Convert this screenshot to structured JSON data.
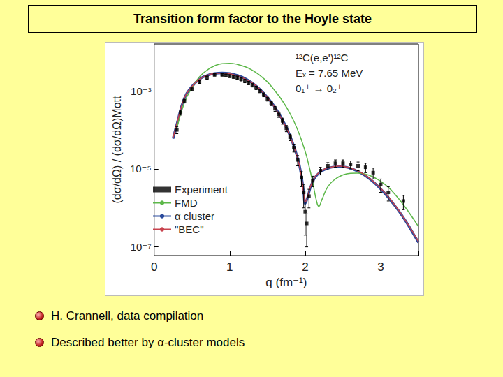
{
  "page": {
    "title": "Transition form factor to the Hoyle state",
    "bullets": [
      "H. Crannell, data compilation",
      "Described better by α-cluster models"
    ]
  },
  "chart_data": {
    "type": "line",
    "x_label": "q (fm⁻¹)",
    "y_label": "(dσ/dΩ) / (dσ/dΩ)Mott",
    "annotations": [
      "¹²C(e,e')¹²C",
      "Eₓ = 7.65 MeV",
      "0₁⁺ → 0₂⁺"
    ],
    "xlim": [
      0,
      3.5
    ],
    "xticks": [
      0,
      1,
      2,
      3
    ],
    "ylim": [
      6e-08,
      0.016
    ],
    "yticks": [
      {
        "value": 1e-07,
        "label": "10⁻⁷"
      },
      {
        "value": 1e-05,
        "label": "10⁻⁵"
      },
      {
        "value": 0.001,
        "label": "10⁻³"
      }
    ],
    "log": "y",
    "grid": false,
    "legend": "lower left",
    "series": [
      {
        "name": "Experiment",
        "type": "scatter",
        "marker": "square",
        "color": "#000000",
        "x": [
          0.3,
          0.35,
          0.4,
          0.5,
          0.6,
          0.7,
          0.8,
          0.9,
          0.95,
          1.0,
          1.05,
          1.1,
          1.15,
          1.2,
          1.25,
          1.3,
          1.35,
          1.4,
          1.45,
          1.5,
          1.55,
          1.6,
          1.65,
          1.7,
          1.75,
          1.8,
          1.85,
          1.9,
          1.95,
          1.98,
          2.0,
          2.02,
          2.05,
          2.1,
          2.2,
          2.3,
          2.4,
          2.5,
          2.6,
          2.7,
          2.8,
          2.9,
          3.0,
          3.1,
          3.3
        ],
        "values": [
          0.0001,
          0.00028,
          0.00055,
          0.0011,
          0.0017,
          0.0022,
          0.0026,
          0.0026,
          0.0025,
          0.0024,
          0.0023,
          0.0022,
          0.002,
          0.0018,
          0.0016,
          0.0014,
          0.0012,
          0.001,
          0.0008,
          0.00062,
          0.00048,
          0.00035,
          0.00025,
          0.00017,
          0.00011,
          6.5e-05,
          3.5e-05,
          1.7e-05,
          6e-06,
          2.5e-06,
          8e-07,
          4e-07,
          2e-06,
          5e-06,
          9e-06,
          1.2e-05,
          1.4e-05,
          1.4e-05,
          1.3e-05,
          1.2e-05,
          1.1e-05,
          8e-06,
          4e-06,
          2.5e-06,
          1.5e-06
        ],
        "errors": [
          2e-05,
          4e-05,
          6e-05,
          0.0001,
          0.00015,
          0.0002,
          0.0002,
          0.0002,
          0.0002,
          0.0002,
          0.0002,
          0.0002,
          0.0002,
          0.00018,
          0.00016,
          0.00014,
          0.00012,
          0.0001,
          9e-05,
          7e-05,
          6e-05,
          5e-05,
          4e-05,
          3e-05,
          2e-05,
          1.2e-05,
          8e-06,
          5e-06,
          2.5e-06,
          1.5e-06,
          6e-07,
          3e-07,
          1e-06,
          1.5e-06,
          2e-06,
          2.5e-06,
          3e-06,
          3e-06,
          3e-06,
          3e-06,
          3e-06,
          2.5e-06,
          1.5e-06,
          1e-06,
          6e-07
        ]
      },
      {
        "name": "FMD",
        "type": "line",
        "color": "#5DB84A",
        "x": [
          0.3,
          0.4,
          0.5,
          0.6,
          0.7,
          0.8,
          0.9,
          1.0,
          1.1,
          1.2,
          1.3,
          1.4,
          1.5,
          1.6,
          1.7,
          1.8,
          1.9,
          2.0,
          2.05,
          2.1,
          2.15,
          2.18,
          2.22,
          2.3,
          2.4,
          2.5,
          2.6,
          2.7,
          2.8,
          2.9,
          3.0,
          3.1,
          3.2,
          3.3,
          3.4,
          3.5
        ],
        "values": [
          0.00011,
          0.0005,
          0.0012,
          0.0023,
          0.0034,
          0.0044,
          0.005,
          0.0051,
          0.0048,
          0.0042,
          0.0034,
          0.0025,
          0.0017,
          0.001,
          0.00055,
          0.00026,
          0.0001,
          2.8e-05,
          1.2e-05,
          4.5e-06,
          1.5e-06,
          1.1e-06,
          1.6e-06,
          3.5e-06,
          5.5e-06,
          7e-06,
          7.7e-06,
          7.8e-06,
          7.3e-06,
          6.2e-06,
          4.8e-06,
          3.4e-06,
          2.1e-06,
          1.2e-06,
          6.5e-07,
          3.3e-07
        ]
      },
      {
        "name": "α cluster",
        "type": "line",
        "color": "#2A4A9C",
        "x": [
          0.25,
          0.3,
          0.4,
          0.5,
          0.6,
          0.7,
          0.8,
          0.9,
          1.0,
          1.1,
          1.2,
          1.3,
          1.4,
          1.5,
          1.6,
          1.7,
          1.8,
          1.9,
          1.95,
          1.98,
          2.0,
          2.03,
          2.08,
          2.15,
          2.25,
          2.35,
          2.45,
          2.55,
          2.65,
          2.75,
          2.85,
          2.95,
          3.05,
          3.15,
          3.25,
          3.35,
          3.45,
          3.5
        ],
        "values": [
          6e-05,
          0.00014,
          0.00065,
          0.0013,
          0.002,
          0.0025,
          0.0028,
          0.0029,
          0.0028,
          0.0025,
          0.0021,
          0.0016,
          0.0011,
          0.00068,
          0.00038,
          0.00018,
          7e-05,
          1.9e-05,
          6.5e-06,
          2.5e-06,
          1.3e-06,
          1.8e-06,
          3.8e-06,
          6.8e-06,
          9.5e-06,
          1.1e-05,
          1.15e-05,
          1.1e-05,
          9.5e-06,
          7.6e-06,
          5.6e-06,
          3.8e-06,
          2.4e-06,
          1.4e-06,
          7.8e-07,
          4e-07,
          1.9e-07,
          1.3e-07
        ]
      },
      {
        "name": "\"BEC\"",
        "type": "line",
        "color": "#C8434E",
        "x": [
          0.25,
          0.3,
          0.4,
          0.5,
          0.6,
          0.7,
          0.8,
          0.9,
          1.0,
          1.1,
          1.2,
          1.3,
          1.4,
          1.5,
          1.6,
          1.7,
          1.8,
          1.9,
          1.95,
          1.98,
          2.0,
          2.03,
          2.08,
          2.15,
          2.25,
          2.35,
          2.45,
          2.55,
          2.65,
          2.75,
          2.85,
          2.95,
          3.05,
          3.15,
          3.25,
          3.35,
          3.45,
          3.5
        ],
        "values": [
          6.2e-05,
          0.000145,
          0.00066,
          0.0013,
          0.002,
          0.0025,
          0.0028,
          0.00285,
          0.00275,
          0.00245,
          0.00205,
          0.0016,
          0.0011,
          0.00067,
          0.00037,
          0.000175,
          6.8e-05,
          1.85e-05,
          6.3e-06,
          2.4e-06,
          1.4e-06,
          1.9e-06,
          4e-06,
          7e-06,
          9.8e-06,
          1.12e-05,
          1.17e-05,
          1.12e-05,
          9.7e-06,
          7.8e-06,
          5.8e-06,
          3.9e-06,
          2.5e-06,
          1.45e-06,
          8e-07,
          4.1e-07,
          2e-07,
          1.35e-07
        ]
      }
    ]
  }
}
